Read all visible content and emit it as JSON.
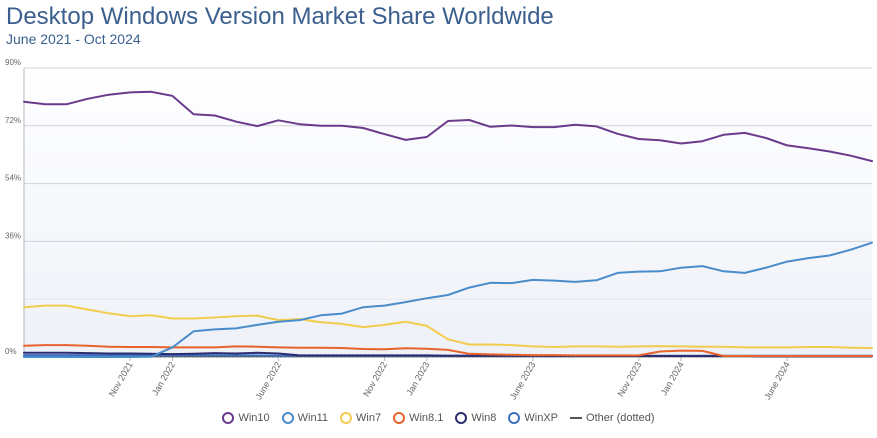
{
  "header": {
    "title": "Desktop Windows Version Market Share Worldwide",
    "subtitle": "June 2021 - Oct 2024"
  },
  "chart_data": {
    "type": "line",
    "title": "Desktop Windows Version Market Share Worldwide",
    "subtitle": "June 2021 - Oct 2024",
    "x": [
      "2021-06",
      "2021-07",
      "2021-08",
      "2021-09",
      "2021-10",
      "2021-11",
      "2021-12",
      "2022-01",
      "2022-02",
      "2022-03",
      "2022-04",
      "2022-05",
      "2022-06",
      "2022-07",
      "2022-08",
      "2022-09",
      "2022-10",
      "2022-11",
      "2022-12",
      "2023-01",
      "2023-02",
      "2023-03",
      "2023-04",
      "2023-05",
      "2023-06",
      "2023-07",
      "2023-08",
      "2023-09",
      "2023-10",
      "2023-11",
      "2023-12",
      "2024-01",
      "2024-02",
      "2024-03",
      "2024-04",
      "2024-05",
      "2024-06",
      "2024-07",
      "2024-08",
      "2024-09",
      "2024-10"
    ],
    "x_tick_labels": [
      {
        "x": "2021-11",
        "label": "Nov 2021"
      },
      {
        "x": "2022-01",
        "label": "Jan 2022"
      },
      {
        "x": "2022-06",
        "label": "June 2022"
      },
      {
        "x": "2022-11",
        "label": "Nov 2022"
      },
      {
        "x": "2023-01",
        "label": "Jan 2023"
      },
      {
        "x": "2023-06",
        "label": "June 2023"
      },
      {
        "x": "2023-11",
        "label": "Nov 2023"
      },
      {
        "x": "2024-01",
        "label": "Jan 2024"
      },
      {
        "x": "2024-06",
        "label": "June 2024"
      }
    ],
    "y_ticks": [
      0,
      36,
      54,
      72,
      90
    ],
    "y_tick_labels": [
      "0%",
      "36%",
      "54%",
      "72%",
      "90%"
    ],
    "ylim": [
      0,
      90
    ],
    "grid": true,
    "legend_position": "bottom",
    "series": [
      {
        "name": "Win10",
        "color": "#6b3a8c",
        "marker": "circle",
        "values": [
          79.5,
          78.7,
          78.7,
          80.4,
          81.7,
          82.4,
          82.6,
          81.3,
          75.6,
          75.2,
          73.3,
          71.9,
          73.7,
          72.5,
          72.0,
          72.0,
          71.3,
          69.4,
          67.6,
          68.5,
          73.5,
          73.8,
          71.7,
          72.1,
          71.6,
          71.6,
          72.3,
          71.8,
          69.5,
          67.9,
          67.5,
          66.5,
          67.2,
          69.2,
          69.8,
          68.2,
          65.9,
          65.0,
          64.0,
          62.7,
          61.0
        ]
      },
      {
        "name": "Win11",
        "color": "#4a8cc9",
        "marker": "circle",
        "values": [
          0.0,
          0.0,
          0.0,
          0.0,
          0.0,
          0.0,
          0.1,
          3.0,
          8.0,
          8.6,
          8.9,
          10.0,
          11.0,
          11.5,
          13.0,
          13.5,
          15.5,
          16.0,
          17.1,
          18.3,
          19.3,
          21.6,
          23.1,
          23.0,
          24.0,
          23.8,
          23.4,
          23.9,
          26.2,
          26.6,
          26.7,
          27.8,
          28.3,
          26.7,
          26.2,
          27.8,
          29.7,
          30.8,
          31.6,
          33.4,
          35.6
        ]
      },
      {
        "name": "Win7",
        "color": "#f2cc4c",
        "marker": "circle",
        "values": [
          15.5,
          16.0,
          16.0,
          14.8,
          13.6,
          12.7,
          13.0,
          12.0,
          12.0,
          12.3,
          12.7,
          12.9,
          11.5,
          11.8,
          10.8,
          10.3,
          9.3,
          10.0,
          11.0,
          9.7,
          5.5,
          3.9,
          3.9,
          3.7,
          3.3,
          3.1,
          3.3,
          3.3,
          3.2,
          3.3,
          3.4,
          3.3,
          3.2,
          3.2,
          3.0,
          3.0,
          3.0,
          3.1,
          3.1,
          2.9,
          2.8
        ]
      },
      {
        "name": "Win8.1",
        "color": "#e8622c",
        "marker": "circle",
        "values": [
          3.5,
          3.7,
          3.7,
          3.5,
          3.2,
          3.1,
          3.1,
          3.0,
          3.0,
          3.0,
          3.3,
          3.2,
          3.0,
          2.9,
          2.9,
          2.8,
          2.5,
          2.4,
          2.7,
          2.6,
          2.2,
          1.0,
          0.8,
          0.7,
          0.6,
          0.6,
          0.5,
          0.5,
          0.5,
          0.5,
          1.7,
          2.0,
          1.9,
          0.3,
          0.3,
          0.3,
          0.3,
          0.3,
          0.3,
          0.3,
          0.3
        ]
      },
      {
        "name": "Win8",
        "color": "#2c2c6e",
        "marker": "circle",
        "values": [
          1.3,
          1.3,
          1.3,
          1.2,
          1.1,
          1.1,
          1.0,
          0.9,
          1.0,
          1.2,
          1.1,
          1.3,
          1.1,
          0.5,
          0.5,
          0.5,
          0.5,
          0.5,
          0.5,
          0.5,
          0.4,
          0.4,
          0.4,
          0.4,
          0.4,
          0.3,
          0.3,
          0.3,
          0.3,
          0.3,
          0.3,
          0.3,
          0.3,
          0.3,
          0.3,
          0.2,
          0.2,
          0.2,
          0.2,
          0.2,
          0.2
        ]
      },
      {
        "name": "WinXP",
        "color": "#3d6fbf",
        "marker": "circle",
        "values": [
          0.6,
          0.6,
          0.6,
          0.6,
          0.5,
          0.5,
          0.5,
          0.5,
          0.5,
          0.5,
          0.5,
          0.5,
          0.4,
          0.4,
          0.4,
          0.4,
          0.4,
          0.4,
          0.4,
          0.4,
          0.4,
          0.4,
          0.4,
          0.4,
          0.4,
          0.4,
          0.4,
          0.4,
          0.4,
          0.4,
          0.4,
          0.4,
          0.4,
          0.4,
          0.4,
          0.4,
          0.4,
          0.4,
          0.4,
          0.4,
          0.4
        ]
      },
      {
        "name": "Other (dotted)",
        "color": "#555555",
        "marker": "line",
        "values": [
          0.2,
          0.2,
          0.2,
          0.2,
          0.2,
          0.2,
          0.2,
          0.2,
          0.2,
          0.2,
          0.2,
          0.2,
          0.2,
          0.2,
          0.2,
          0.2,
          0.2,
          0.2,
          0.2,
          0.2,
          0.2,
          0.2,
          0.2,
          0.2,
          0.2,
          0.2,
          0.2,
          0.2,
          0.2,
          0.2,
          0.2,
          0.2,
          0.2,
          0.2,
          0.2,
          0.2,
          0.2,
          0.2,
          0.2,
          0.2,
          0.2
        ]
      }
    ]
  }
}
